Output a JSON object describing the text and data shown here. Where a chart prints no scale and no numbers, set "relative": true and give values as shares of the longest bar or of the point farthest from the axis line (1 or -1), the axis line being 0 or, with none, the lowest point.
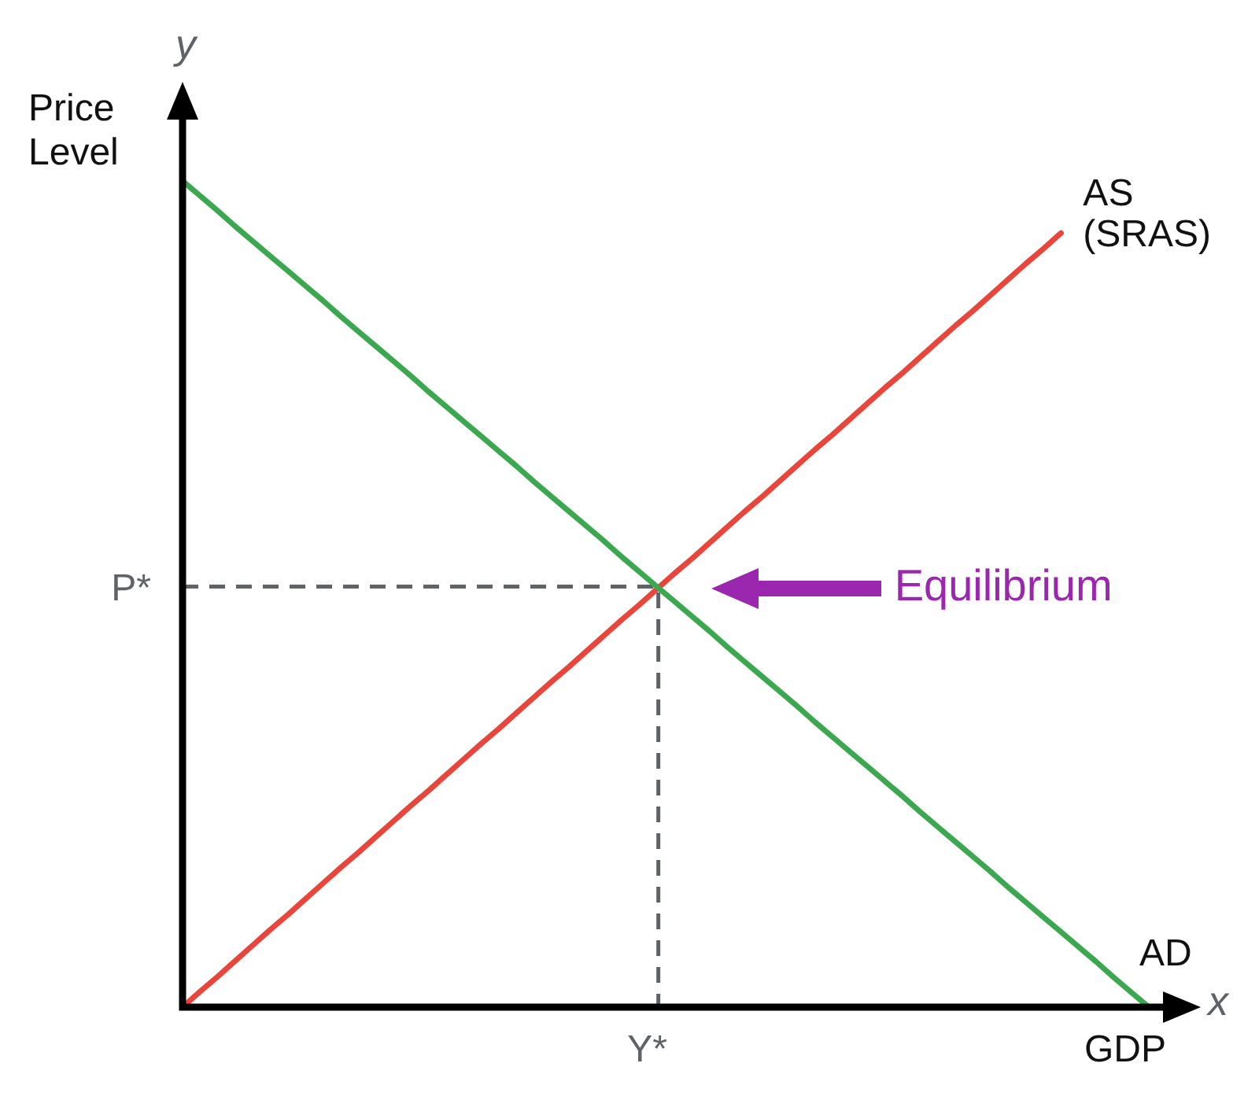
{
  "chart_data": {
    "type": "line",
    "relative": true,
    "marker": "none",
    "xlabel": "GDP",
    "ylabel": "Price Level",
    "categories": [
      null,
      null,
      null,
      null,
      null,
      null,
      null,
      null,
      null,
      null,
      null,
      null,
      null,
      null,
      null,
      null,
      null,
      null,
      null,
      null,
      null,
      null,
      null,
      null,
      null,
      null,
      null,
      null,
      null,
      null,
      null,
      null,
      null,
      null,
      null,
      null,
      null,
      null,
      null,
      null,
      null,
      null,
      null,
      null,
      null,
      null,
      null,
      null,
      null,
      null,
      null,
      null,
      null,
      null,
      null,
      null
    ],
    "series": [
      {
        "name": "AD",
        "color": "#3ba84f",
        "values": [
          1,
          0.982,
          0.964,
          0.945,
          0.927,
          0.909,
          0.891,
          0.873,
          0.855,
          0.836,
          0.818,
          0.8,
          0.782,
          0.764,
          0.745,
          0.727,
          0.709,
          0.691,
          0.673,
          0.655,
          0.636,
          0.618,
          0.6,
          0.582,
          0.564,
          0.545,
          0.527,
          0.509,
          0.491,
          0.473,
          0.455,
          0.436,
          0.418,
          0.4,
          0.382,
          0.364,
          0.345,
          0.327,
          0.309,
          0.291,
          0.273,
          0.255,
          0.236,
          0.218,
          0.2,
          0.182,
          0.164,
          0.145,
          0.127,
          0.109,
          0.091,
          0.073,
          0.055,
          0.036,
          0.018,
          0
        ]
      },
      {
        "name": "AS (SRAS)",
        "color": "#e9453b",
        "values": [
          0,
          0.019,
          0.037,
          0.056,
          0.075,
          0.094,
          0.112,
          0.131,
          0.15,
          0.169,
          0.187,
          0.206,
          0.225,
          0.244,
          0.262,
          0.281,
          0.3,
          0.319,
          0.337,
          0.356,
          0.375,
          0.394,
          0.412,
          0.431,
          0.45,
          0.469,
          0.487,
          0.506,
          0.525,
          0.543,
          0.562,
          0.581,
          0.6,
          0.618,
          0.637,
          0.656,
          0.675,
          0.693,
          0.712,
          0.731,
          0.75,
          0.768,
          0.787,
          0.806,
          0.825,
          0.843,
          0.862,
          0.881,
          0.9,
          0.918,
          0.937,
          null,
          null,
          null,
          null,
          null
        ]
      }
    ],
    "ref_lines": [
      {
        "axis": "y",
        "value": 0.509,
        "label": "P*",
        "color": "#5f6368",
        "line_style": "dashed"
      }
    ],
    "annotations": [
      "y",
      "x",
      "Y*",
      "Equilibrium"
    ]
  }
}
